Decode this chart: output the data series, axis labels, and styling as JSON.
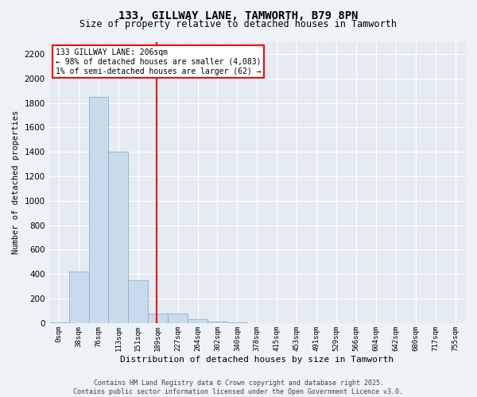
{
  "title_line1": "133, GILLWAY LANE, TAMWORTH, B79 8PN",
  "title_line2": "Size of property relative to detached houses in Tamworth",
  "xlabel": "Distribution of detached houses by size in Tamworth",
  "ylabel": "Number of detached properties",
  "bar_labels": [
    "0sqm",
    "38sqm",
    "76sqm",
    "113sqm",
    "151sqm",
    "189sqm",
    "227sqm",
    "264sqm",
    "302sqm",
    "340sqm",
    "378sqm",
    "415sqm",
    "453sqm",
    "491sqm",
    "529sqm",
    "566sqm",
    "604sqm",
    "642sqm",
    "680sqm",
    "717sqm",
    "755sqm"
  ],
  "bar_values": [
    5,
    420,
    1850,
    1400,
    350,
    75,
    75,
    30,
    10,
    5,
    2,
    1,
    0,
    0,
    0,
    0,
    0,
    0,
    0,
    0,
    0
  ],
  "bar_color": "#c9daea",
  "bar_edge_color": "#7aaac8",
  "ylim": [
    0,
    2300
  ],
  "yticks": [
    0,
    200,
    400,
    600,
    800,
    1000,
    1200,
    1400,
    1600,
    1800,
    2000,
    2200
  ],
  "vline_color": "red",
  "annotation_text": "133 GILLWAY LANE: 206sqm\n← 98% of detached houses are smaller (4,083)\n1% of semi-detached houses are larger (62) →",
  "annotation_box_color": "white",
  "annotation_box_edge": "red",
  "footer_line1": "Contains HM Land Registry data © Crown copyright and database right 2025.",
  "footer_line2": "Contains public sector information licensed under the Open Government Licence v3.0.",
  "bg_color": "#eef2f6",
  "plot_bg_color": "#e4ebf2",
  "grid_color": "white"
}
